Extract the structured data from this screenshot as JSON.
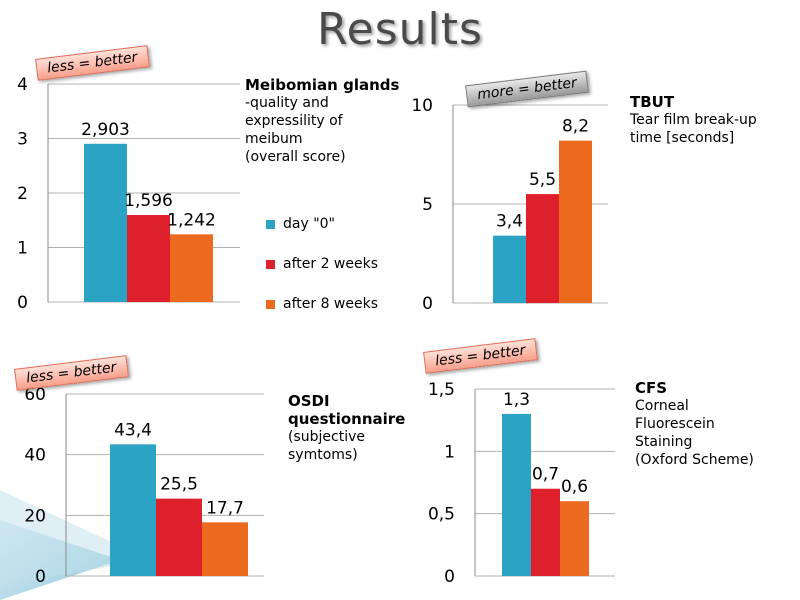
{
  "page": {
    "title": "Results",
    "tags": {
      "meibo": "less = better",
      "tbut": "more = better",
      "osdi": "less = better",
      "cfs": "less = better"
    },
    "descriptions": {
      "meibo": {
        "heading": "Meibomian glands",
        "lines": [
          "-quality and",
          "expressility of",
          "meibum",
          "(overall score)"
        ]
      },
      "tbut": {
        "heading": "TBUT",
        "lines": [
          "Tear film break-up",
          "time [seconds]"
        ]
      },
      "osdi": {
        "heading": "OSDI",
        "heading2": "questionnaire",
        "lines": [
          "(subjective",
          "symtoms)"
        ]
      },
      "cfs": {
        "heading": "CFS",
        "lines": [
          "Corneal",
          "Fluorescein",
          "Staining",
          "(Oxford Scheme)"
        ]
      }
    },
    "legend": [
      {
        "label": "day \"0\"",
        "color": "#2ba3c4"
      },
      {
        "label": "after 2 weeks",
        "color": "#de1f2c"
      },
      {
        "label": "after 8 weeks",
        "color": "#ec6a1e"
      }
    ]
  },
  "chart_data": [
    {
      "type": "bar",
      "name": "meibo",
      "title": "Meibomian glands",
      "categories": [
        "day \"0\"",
        "after 2 weeks",
        "after 8 weeks"
      ],
      "values": [
        2.903,
        1.596,
        1.242
      ],
      "labels": [
        "2,903",
        "1,596",
        "1,242"
      ],
      "ylim": [
        0,
        4
      ],
      "yticks": [
        0,
        1,
        2,
        3,
        4
      ],
      "ytick_labels": [
        "0",
        "1",
        "2",
        "3",
        "4"
      ],
      "grid": true
    },
    {
      "type": "bar",
      "name": "tbut",
      "title": "TBUT",
      "categories": [
        "day \"0\"",
        "after 2 weeks",
        "after 8 weeks"
      ],
      "values": [
        3.4,
        5.5,
        8.2
      ],
      "labels": [
        "3,4",
        "5,5",
        "8,2"
      ],
      "ylim": [
        0,
        10
      ],
      "yticks": [
        0,
        5,
        10
      ],
      "ytick_labels": [
        "0",
        "5",
        "10"
      ],
      "grid": true
    },
    {
      "type": "bar",
      "name": "osdi",
      "title": "OSDI questionnaire",
      "categories": [
        "day \"0\"",
        "after 2 weeks",
        "after 8 weeks"
      ],
      "values": [
        43.4,
        25.5,
        17.7
      ],
      "labels": [
        "43,4",
        "25,5",
        "17,7"
      ],
      "ylim": [
        0,
        60
      ],
      "yticks": [
        0,
        20,
        40,
        60
      ],
      "ytick_labels": [
        "0",
        "20",
        "40",
        "60"
      ],
      "grid": true
    },
    {
      "type": "bar",
      "name": "cfs",
      "title": "CFS",
      "categories": [
        "day \"0\"",
        "after 2 weeks",
        "after 8 weeks"
      ],
      "values": [
        1.3,
        0.7,
        0.6
      ],
      "labels": [
        "1,3",
        "0,7",
        "0,6"
      ],
      "ylim": [
        0,
        1.5
      ],
      "yticks": [
        0,
        0.5,
        1,
        1.5
      ],
      "ytick_labels": [
        "0",
        "0,5",
        "1",
        "1,5"
      ],
      "grid": true
    }
  ]
}
